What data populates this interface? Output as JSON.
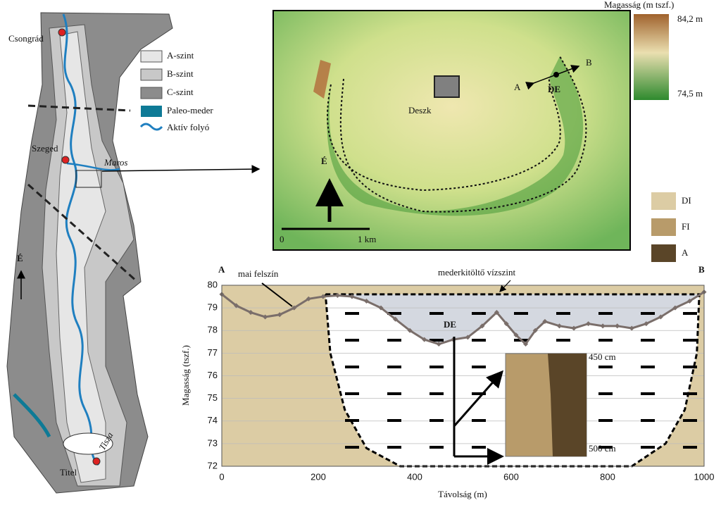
{
  "map": {
    "places": [
      "Csongrád",
      "Szeged",
      "Titel"
    ],
    "rivers": [
      "Maros",
      "Tisza"
    ],
    "north": "É",
    "legend": [
      "A-szint",
      "B-szint",
      "C-szint",
      "Paleo-meder",
      "Aktív folyó"
    ]
  },
  "dem": {
    "town": "Deszk",
    "point_a": "A",
    "point_b": "B",
    "site": "DE",
    "north": "É",
    "scale_start": "0",
    "scale_end": "1 km",
    "colorbar_title": "Magasság (m tszf.)",
    "colorbar_max": "84,2 m",
    "colorbar_min": "74,5 m"
  },
  "units_legend": [
    "DI",
    "FI",
    "A"
  ],
  "chart_data": {
    "type": "line",
    "x_label": "Távolság (m)",
    "y_label": "Magasság (tszf.)",
    "start_label": "A",
    "end_label": "B",
    "site_label": "DE",
    "core_labels": [
      "450 cm",
      "500 cm"
    ],
    "xlim": [
      0,
      1000
    ],
    "xticks": [
      0,
      200,
      400,
      600,
      800,
      1000
    ],
    "ylim": [
      72,
      80
    ],
    "yticks": [
      72,
      73,
      74,
      75,
      76,
      77,
      78,
      79,
      80
    ],
    "grid": true,
    "series": [
      {
        "name": "mai felszín",
        "color": "#7a6e6a",
        "x": [
          0,
          30,
          60,
          90,
          120,
          150,
          180,
          210,
          240,
          270,
          300,
          330,
          360,
          390,
          420,
          450,
          480,
          510,
          540,
          570,
          590,
          610,
          630,
          650,
          670,
          700,
          730,
          760,
          790,
          820,
          850,
          880,
          910,
          940,
          970,
          1000
        ],
        "values": [
          79.6,
          79.1,
          78.8,
          78.6,
          78.7,
          79.0,
          79.4,
          79.5,
          79.55,
          79.5,
          79.3,
          79.0,
          78.5,
          78.0,
          77.6,
          77.4,
          77.6,
          77.7,
          78.2,
          78.8,
          78.3,
          77.8,
          77.4,
          78.0,
          78.4,
          78.2,
          78.1,
          78.3,
          78.2,
          78.2,
          78.1,
          78.3,
          78.6,
          79.0,
          79.3,
          79.7
        ]
      },
      {
        "name": "mederkitöltő vízszint",
        "color": "#000000",
        "x": [
          215,
          990,
          985,
          960,
          920,
          850,
          370,
          300,
          255,
          225,
          215
        ],
        "values": [
          79.6,
          79.6,
          77,
          74.5,
          73,
          72,
          72,
          72.8,
          74.5,
          77,
          79.6
        ]
      }
    ]
  }
}
